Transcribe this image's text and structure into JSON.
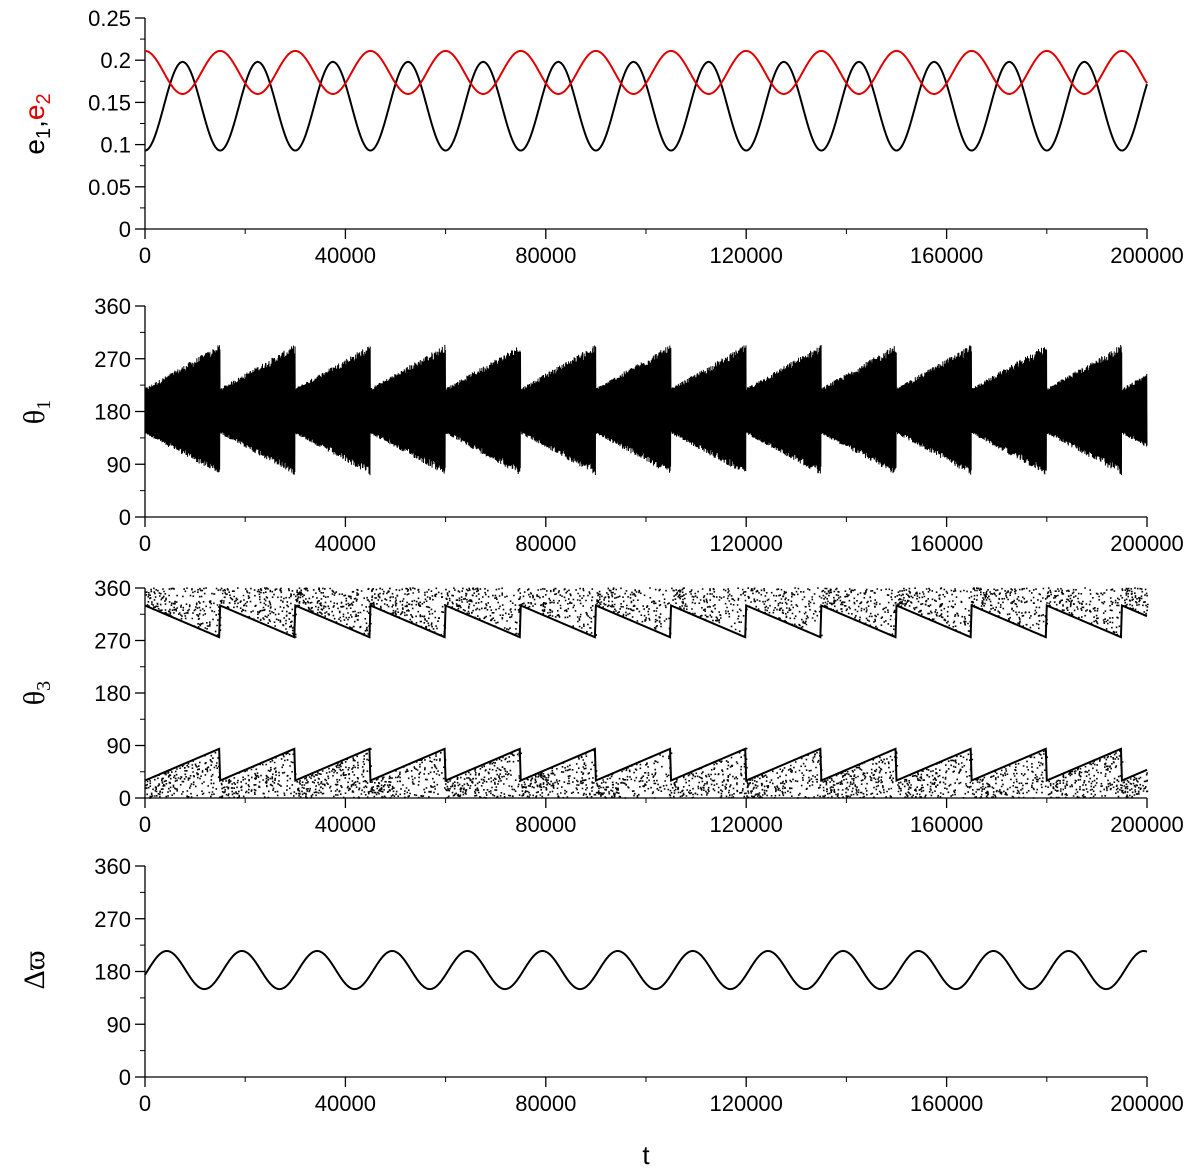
{
  "chart_data": [
    {
      "type": "line",
      "ylabel": "e1,e2",
      "ylabel_parts": [
        "e",
        "1",
        ",",
        "e",
        "2"
      ],
      "ylim": [
        0,
        0.25
      ],
      "yticks": [
        "0",
        "0.05",
        "0.1",
        "0.15",
        "0.2",
        "0.25"
      ],
      "xlim": [
        0,
        200000
      ],
      "xticks": [
        "0",
        "40000",
        "80000",
        "120000",
        "160000",
        "200000"
      ],
      "series": [
        {
          "name": "e1",
          "color": "#000000",
          "min": 0.093,
          "max": 0.198,
          "period": 15000,
          "phase": 0
        },
        {
          "name": "e2",
          "color": "#e00000",
          "min": 0.16,
          "max": 0.211,
          "period": 15000,
          "phase": 0
        }
      ]
    },
    {
      "type": "line",
      "ylabel": "θ1",
      "ylabel_parts": [
        "θ",
        "1"
      ],
      "ylim": [
        0,
        360
      ],
      "yticks": [
        "0",
        "90",
        "180",
        "270",
        "360"
      ],
      "xlim": [
        0,
        200000
      ],
      "xticks": [
        "0",
        "40000",
        "80000",
        "120000",
        "160000",
        "200000"
      ],
      "series": [
        {
          "name": "θ1",
          "color": "#000000",
          "center": 180,
          "amplitude_range": [
            40,
            115
          ],
          "period": 15000
        }
      ]
    },
    {
      "type": "scatter",
      "ylabel": "θ3",
      "ylabel_parts": [
        "θ",
        "3"
      ],
      "ylim": [
        0,
        360
      ],
      "yticks": [
        "0",
        "90",
        "180",
        "270",
        "360"
      ],
      "xlim": [
        0,
        200000
      ],
      "xticks": [
        "0",
        "40000",
        "80000",
        "120000",
        "160000",
        "200000"
      ],
      "series": [
        {
          "name": "θ3",
          "color": "#000000",
          "bands": [
            [
              0,
              88
            ],
            [
              272,
              360
            ]
          ],
          "period": 15000
        }
      ]
    },
    {
      "type": "line",
      "ylabel": "Δϖ",
      "ylabel_parts": [
        "Δϖ"
      ],
      "ylim": [
        0,
        360
      ],
      "yticks": [
        "0",
        "90",
        "180",
        "270",
        "360"
      ],
      "xlim": [
        0,
        200000
      ],
      "xticks": [
        "0",
        "40000",
        "80000",
        "120000",
        "160000",
        "200000"
      ],
      "xlabel": "t",
      "series": [
        {
          "name": "Δϖ",
          "color": "#000000",
          "min": 150,
          "max": 215,
          "period": 15000,
          "start": 165
        }
      ]
    }
  ]
}
